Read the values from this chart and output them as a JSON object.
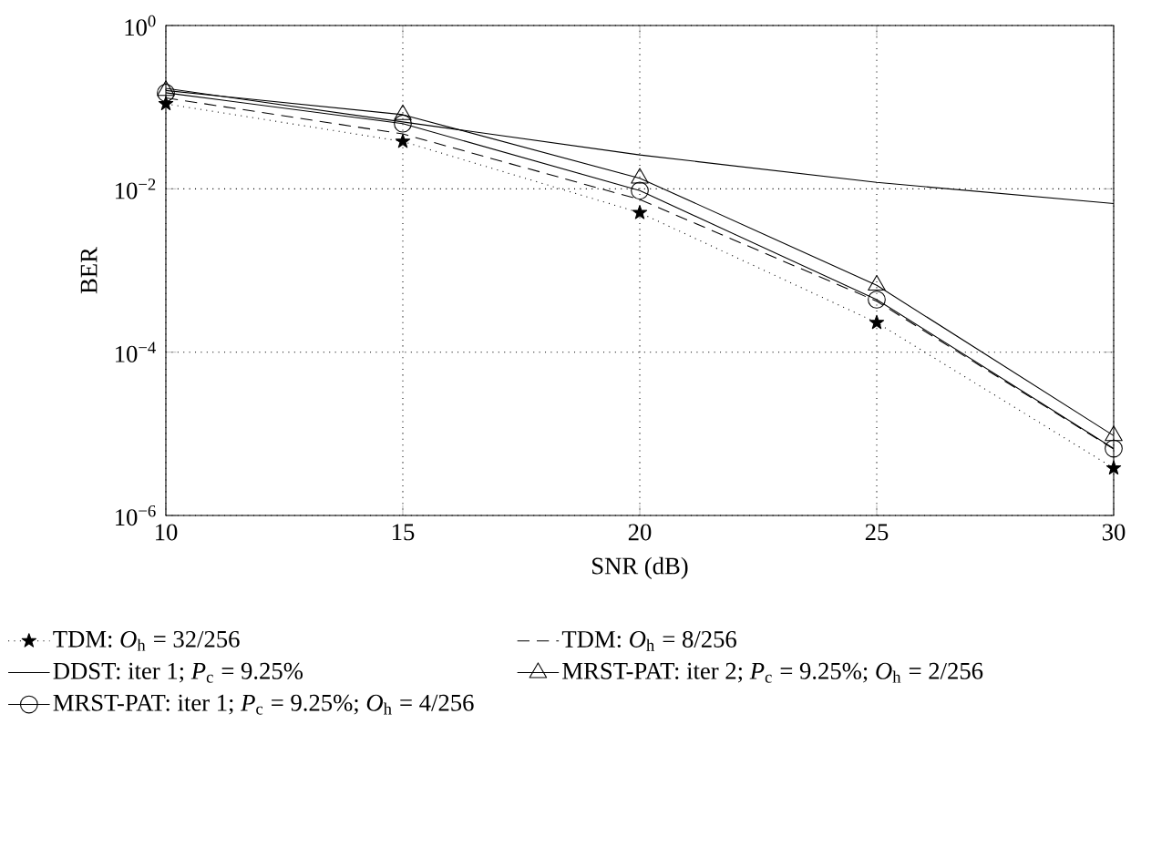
{
  "chart_data": {
    "type": "line",
    "xlabel": "SNR (dB)",
    "ylabel": "BER",
    "log": "y",
    "grid": true,
    "legend": "bottom",
    "x": [
      10,
      15,
      20,
      25,
      30
    ],
    "xlim": [
      10,
      30
    ],
    "xticks": [
      10,
      15,
      20,
      25,
      30
    ],
    "ylim": [
      1e-06,
      1
    ],
    "yticks": [
      {
        "value": 1e-06,
        "label": "10$^{−6}$"
      },
      {
        "value": 0.0001,
        "label": "10$^{−4}$"
      },
      {
        "value": 0.01,
        "label": "10$^{−2}$"
      },
      {
        "value": 1,
        "label": "10$^{0}$"
      }
    ],
    "series": [
      {
        "name": "TDM: *O*$_{h}$ = 32/256",
        "color": "#000000",
        "marker": "star",
        "line_style": "dotted",
        "values": [
          0.11,
          0.038,
          0.0051,
          0.00023,
          3.8e-06
        ]
      },
      {
        "name": "TDM: *O*$_{h}$ = 8/256",
        "color": "#000000",
        "marker": "none",
        "line_style": "dashed",
        "values": [
          0.13,
          0.047,
          0.0074,
          0.00042,
          6.5e-06
        ]
      },
      {
        "name": "DDST: iter 1; *P*$_{c}$ = 9.25%",
        "color": "#000000",
        "marker": "none",
        "line_style": "solid",
        "values": [
          0.17,
          0.066,
          0.026,
          0.012,
          0.0066
        ]
      },
      {
        "name": "MRST-PAT: iter 2; *P*$_{c}$ = 9.25%; *O*$_{h}$ = 2/256",
        "color": "#000000",
        "marker": "triangle",
        "line_style": "solid",
        "values": [
          0.16,
          0.081,
          0.0135,
          0.00066,
          9.5e-06
        ]
      },
      {
        "name": "MRST-PAT: iter 1; *P*$_{c}$ = 9.25%; *O*$_{h}$ = 4/256",
        "color": "#000000",
        "marker": "circle",
        "line_style": "solid",
        "values": [
          0.15,
          0.063,
          0.0095,
          0.00044,
          6.6e-06
        ]
      }
    ]
  }
}
